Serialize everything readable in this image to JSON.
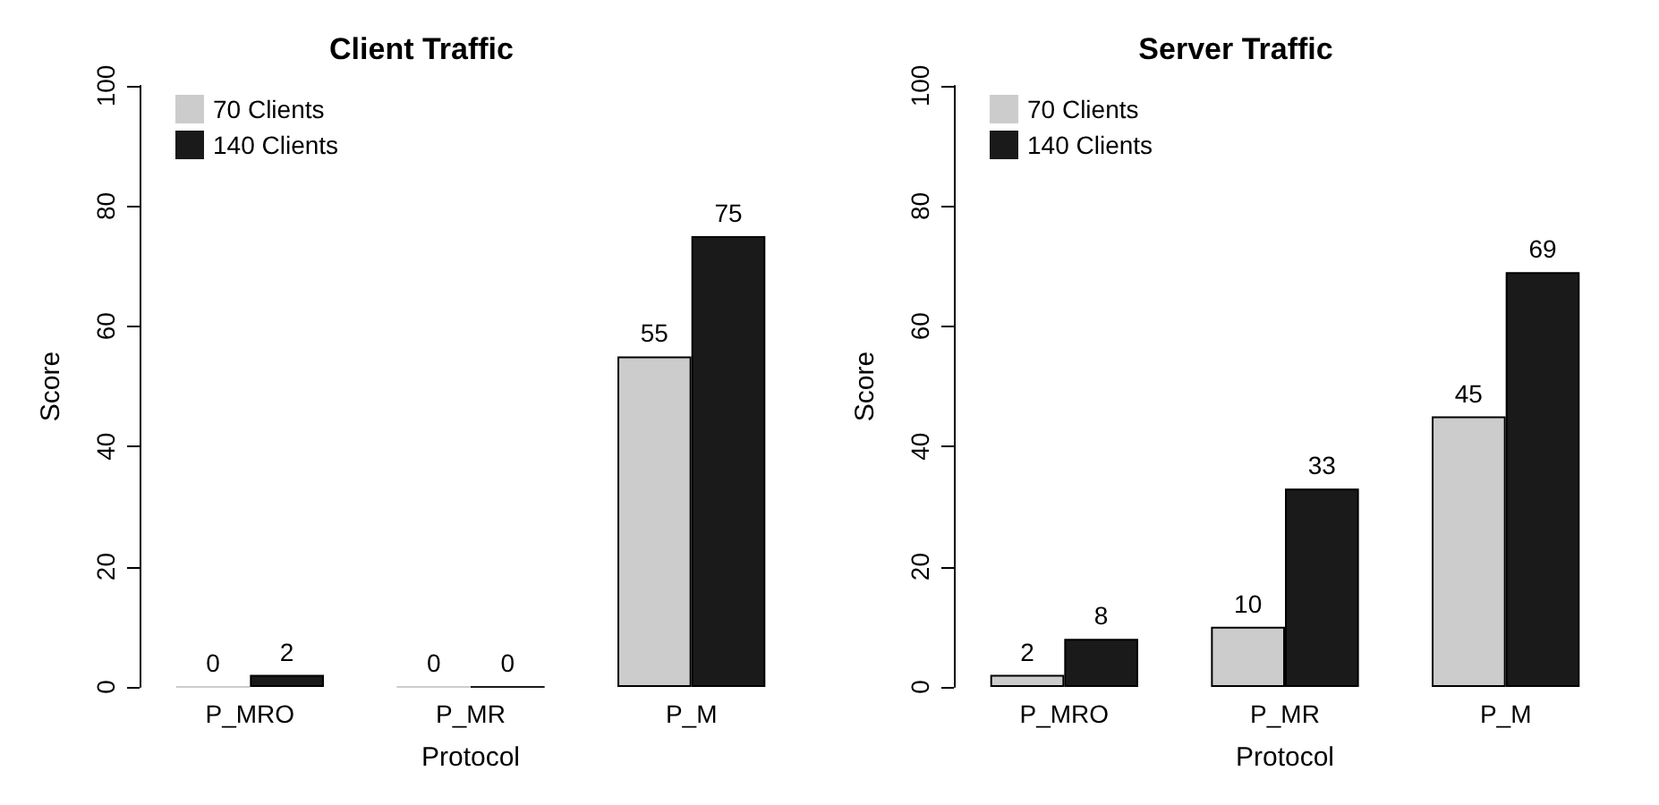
{
  "chart_data": [
    {
      "type": "bar",
      "title": "Client Traffic",
      "xlabel": "Protocol",
      "ylabel": "Score",
      "categories": [
        "P_MRO",
        "P_MR",
        "P_M"
      ],
      "series": [
        {
          "name": "70 Clients",
          "color": "#cccccc",
          "values": [
            0,
            0,
            55
          ]
        },
        {
          "name": "140 Clients",
          "color": "#1a1a1a",
          "values": [
            2,
            0,
            75
          ]
        }
      ],
      "ylim": [
        0,
        100
      ],
      "yticks": [
        0,
        20,
        40,
        60,
        80,
        100
      ],
      "grid": false,
      "legend": "top left",
      "data_labels": true
    },
    {
      "type": "bar",
      "title": "Server Traffic",
      "xlabel": "Protocol",
      "ylabel": "Score",
      "categories": [
        "P_MRO",
        "P_MR",
        "P_M"
      ],
      "series": [
        {
          "name": "70 Clients",
          "color": "#cccccc",
          "values": [
            2,
            10,
            45
          ]
        },
        {
          "name": "140 Clients",
          "color": "#1a1a1a",
          "values": [
            8,
            33,
            69
          ]
        }
      ],
      "ylim": [
        0,
        100
      ],
      "yticks": [
        0,
        20,
        40,
        60,
        80,
        100
      ],
      "grid": false,
      "legend": "top left",
      "data_labels": true
    }
  ]
}
